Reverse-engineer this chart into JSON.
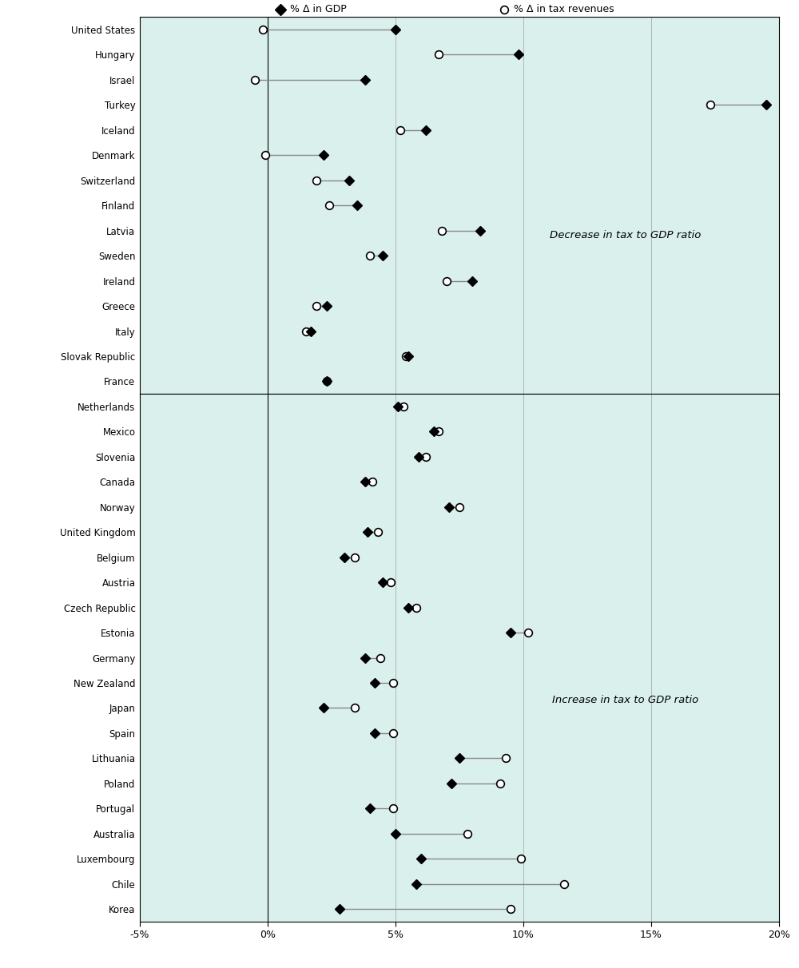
{
  "xlim": [
    -5,
    20
  ],
  "xticks": [
    -5,
    0,
    5,
    10,
    15,
    20
  ],
  "xticklabels": [
    "-5%",
    "0%",
    "5%",
    "10%",
    "15%",
    "20%"
  ],
  "bg_color": "#daf0ed",
  "header_bg": "#c8c8c8",
  "top_section_label": "Decrease in tax to GDP ratio",
  "bottom_section_label": "Increase in tax to GDP ratio",
  "countries_top": [
    "United States",
    "Hungary",
    "Israel",
    "Turkey",
    "Iceland",
    "Denmark",
    "Switzerland",
    "Finland",
    "Latvia",
    "Sweden",
    "Ireland",
    "Greece",
    "Italy",
    "Slovak Republic",
    "France"
  ],
  "gdp_top": [
    5.0,
    9.8,
    3.8,
    19.5,
    6.2,
    2.2,
    3.2,
    3.5,
    8.3,
    4.5,
    8.0,
    2.3,
    1.7,
    5.5,
    2.3
  ],
  "tax_top": [
    -0.2,
    6.7,
    -0.5,
    17.3,
    5.2,
    -0.1,
    1.9,
    2.4,
    6.8,
    4.0,
    7.0,
    1.9,
    1.5,
    5.4,
    2.3
  ],
  "countries_bottom": [
    "Netherlands",
    "Mexico",
    "Slovenia",
    "Canada",
    "Norway",
    "United Kingdom",
    "Belgium",
    "Austria",
    "Czech Republic",
    "Estonia",
    "Germany",
    "New Zealand",
    "Japan",
    "Spain",
    "Lithuania",
    "Poland",
    "Portugal",
    "Australia",
    "Luxembourg",
    "Chile",
    "Korea"
  ],
  "gdp_bottom": [
    5.1,
    6.5,
    5.9,
    3.8,
    7.1,
    3.9,
    3.0,
    4.5,
    5.5,
    9.5,
    3.8,
    4.2,
    2.2,
    4.2,
    7.5,
    7.2,
    4.0,
    5.0,
    6.0,
    5.8,
    2.8
  ],
  "tax_bottom": [
    5.3,
    6.7,
    6.2,
    4.1,
    7.5,
    4.3,
    3.4,
    4.8,
    5.8,
    10.2,
    4.4,
    4.9,
    3.4,
    4.9,
    9.3,
    9.1,
    4.9,
    7.8,
    9.9,
    11.6,
    9.5
  ],
  "line_color": "#888888",
  "marker_gdp_color": "#000000",
  "marker_tax_facecolor": "#ffffff",
  "marker_tax_edgecolor": "#000000",
  "marker_size": 7
}
